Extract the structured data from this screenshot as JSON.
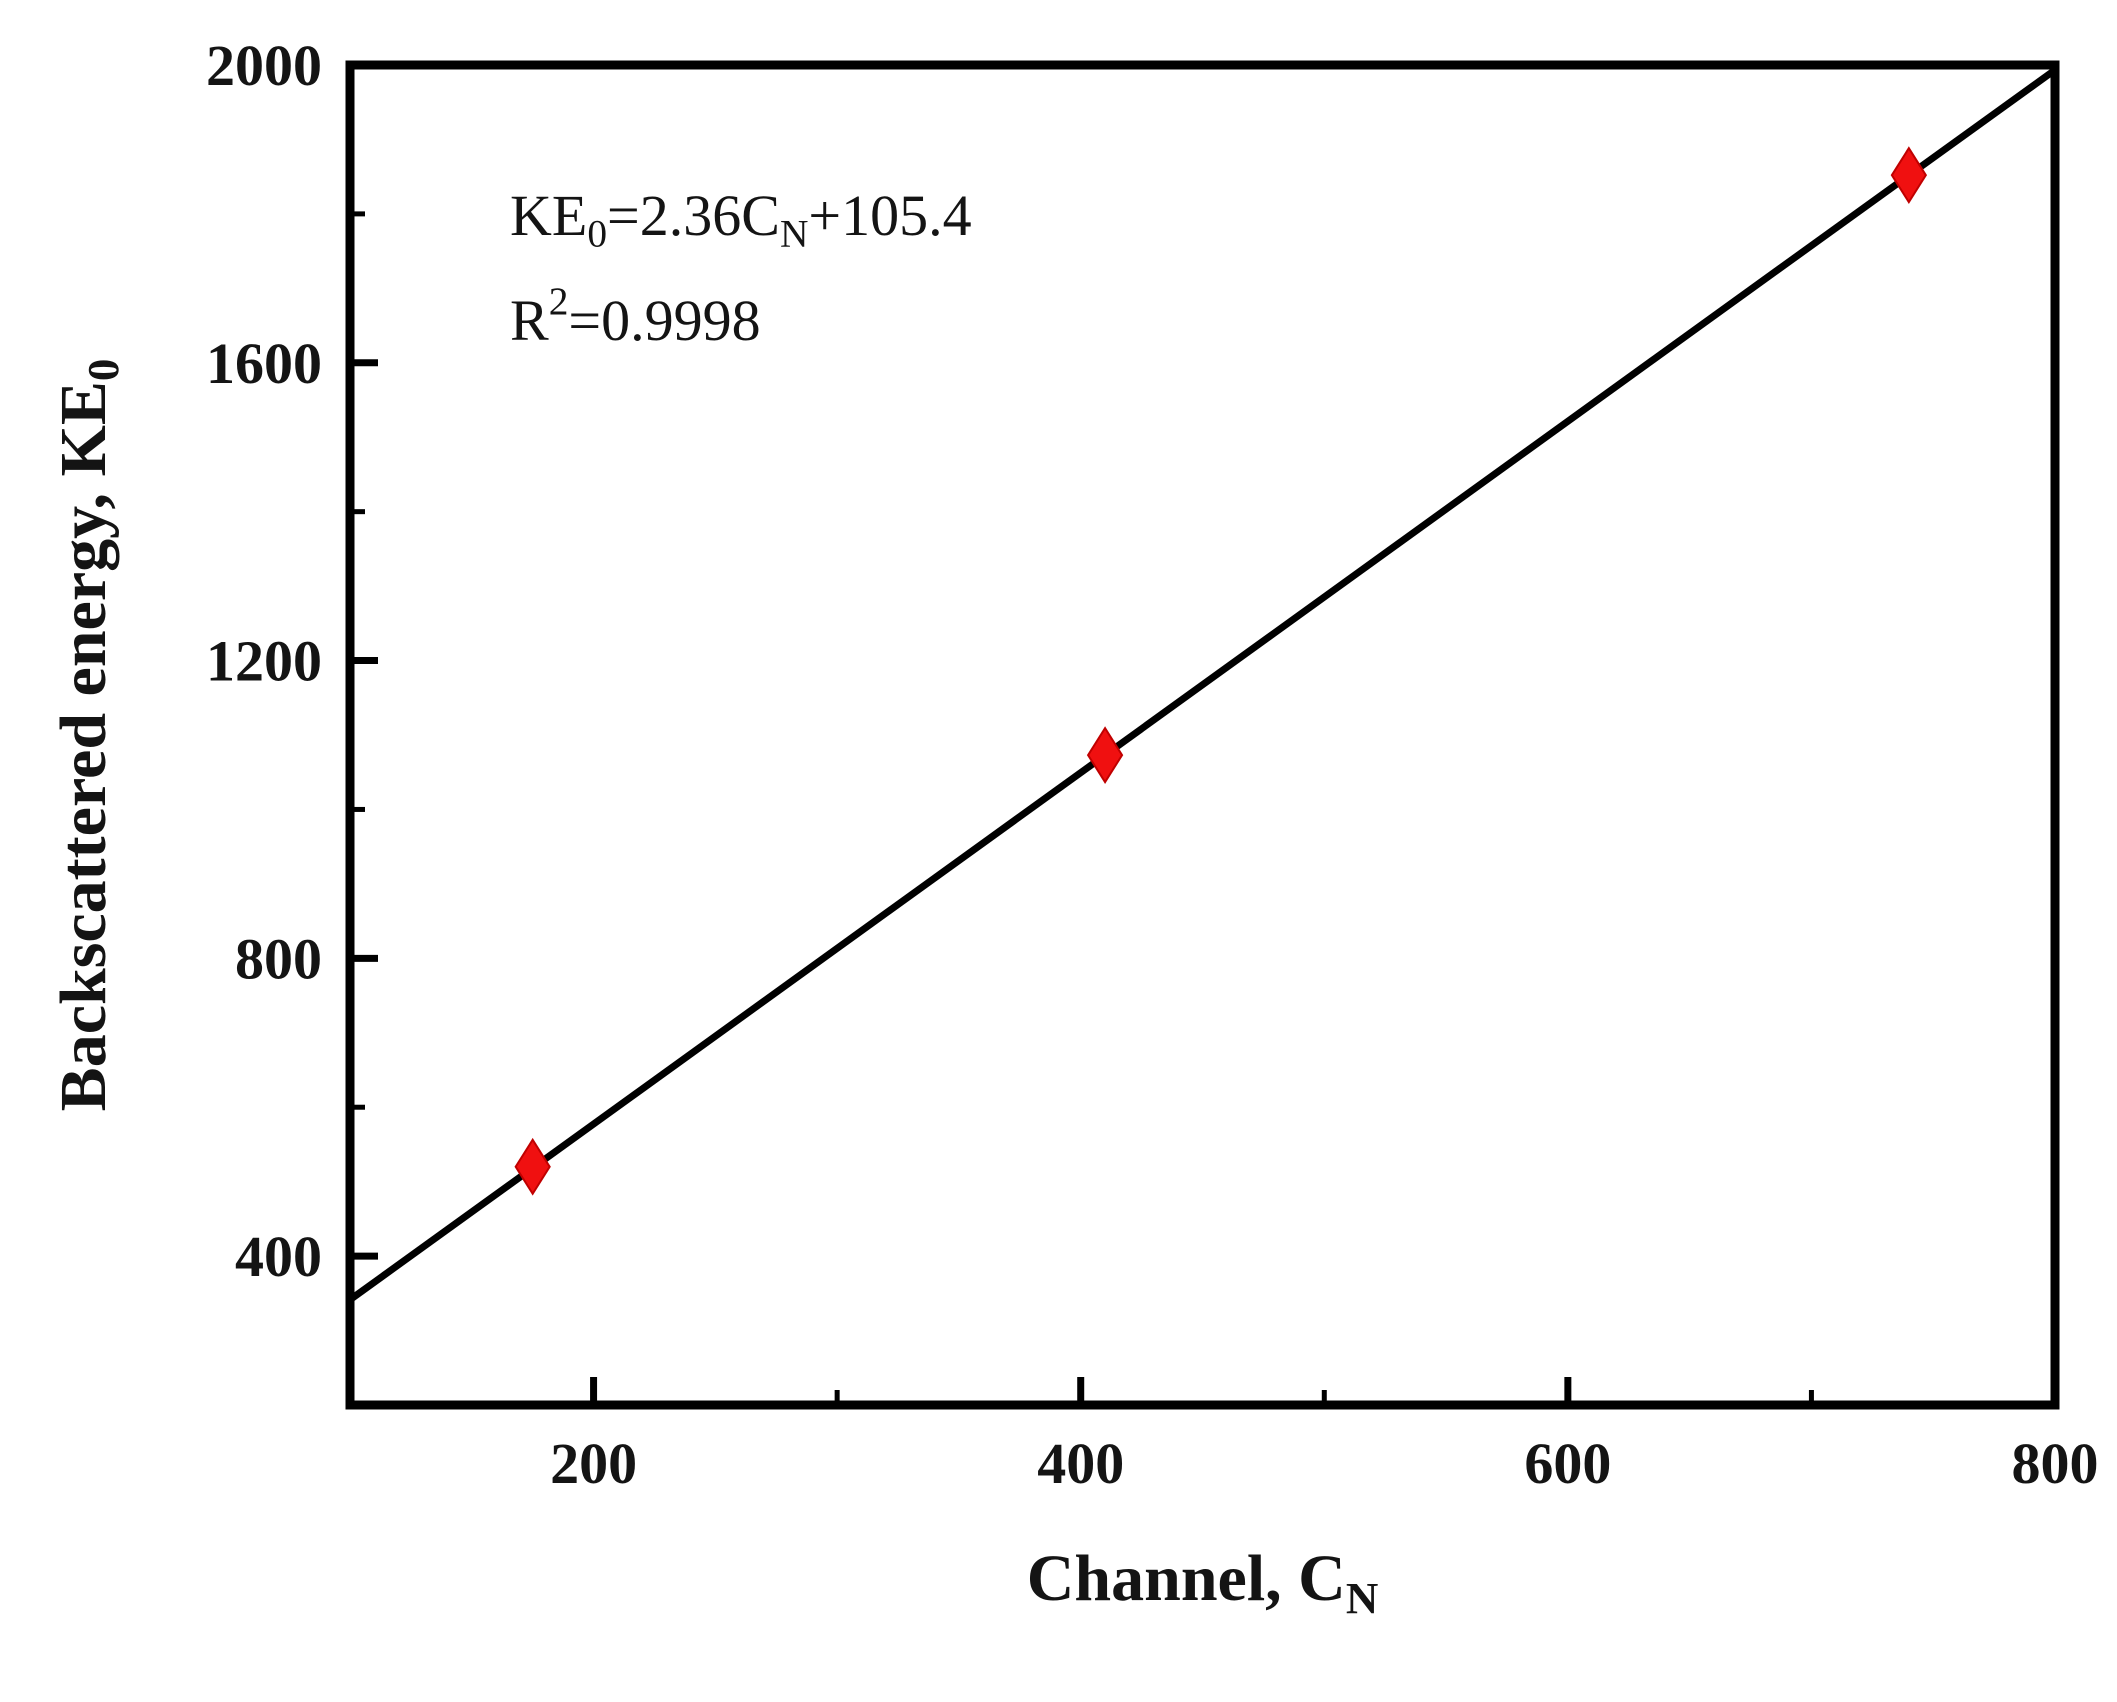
{
  "chart_data": {
    "type": "scatter",
    "title": "",
    "xlabel_segments": [
      {
        "t": "Channel, C"
      },
      {
        "t": "N",
        "sub": true
      }
    ],
    "ylabel_segments": [
      {
        "t": "Backscattered energy, KE"
      },
      {
        "t": "0",
        "sub": true
      }
    ],
    "points": [
      {
        "x": 175,
        "y": 520
      },
      {
        "x": 410,
        "y": 1073
      },
      {
        "x": 740,
        "y": 1852
      }
    ],
    "fit": {
      "slope": 2.36,
      "intercept": 105.4,
      "r_squared": 0.9998
    },
    "annotation": {
      "line1_segments": [
        {
          "t": "KE"
        },
        {
          "t": "0",
          "sub": true
        },
        {
          "t": "=2.36C"
        },
        {
          "t": "N",
          "sub": true
        },
        {
          "t": "+105.4"
        }
      ],
      "line2_segments": [
        {
          "t": "R"
        },
        {
          "t": "2",
          "sup": true
        },
        {
          "t": "=0.9998"
        }
      ]
    },
    "xlim": [
      100,
      800
    ],
    "ylim": [
      200,
      2000
    ],
    "x_major_ticks": [
      200,
      400,
      600,
      800
    ],
    "x_minor_step": 100,
    "y_major_ticks": [
      400,
      800,
      1200,
      1600,
      2000
    ],
    "y_minor_step": 200,
    "grid": false,
    "legend": "none",
    "colors": {
      "line": "#000000",
      "frame": "#000000",
      "marker": "#f01010",
      "marker_edge": "#c00000",
      "text": "#141414"
    }
  }
}
